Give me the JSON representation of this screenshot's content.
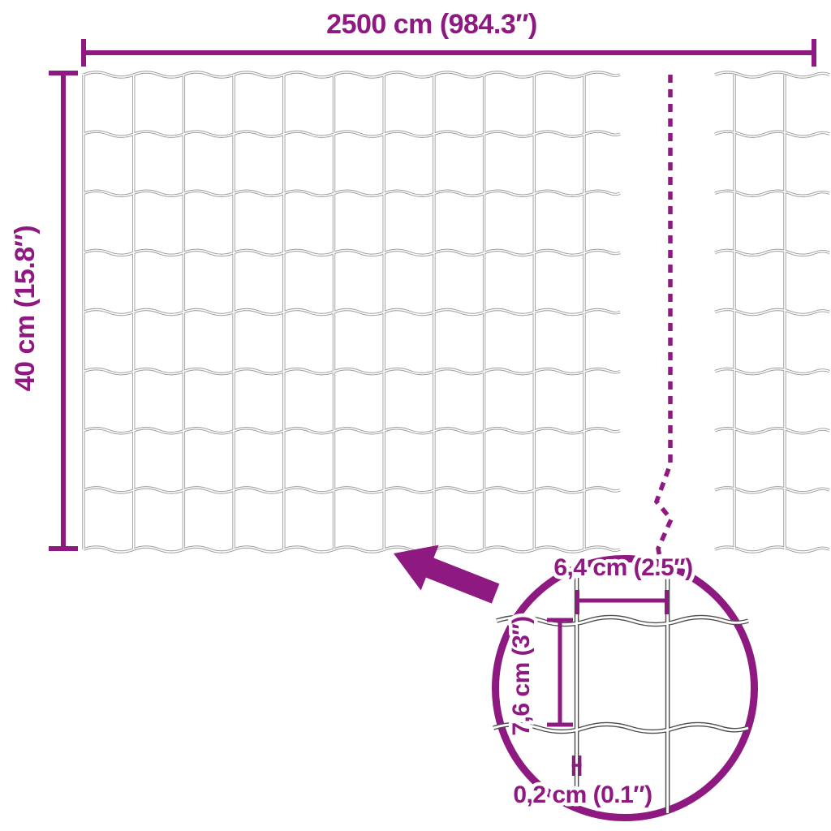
{
  "title": "Wire mesh fence dimension diagram",
  "colors": {
    "accent": "#8E1980",
    "wire": "#9C9C9C",
    "detail_wire": "#4D4D4D",
    "background": "#FFFFFF"
  },
  "dimensions": {
    "length": {
      "label": "2500 cm (984.3″)"
    },
    "height": {
      "label": "40 cm (15.8″)"
    },
    "mesh_width": {
      "label": "6,4 cm (2.5″)"
    },
    "mesh_height": {
      "label": "7,6 cm (3″)"
    },
    "wire_thickness": {
      "label": "0,2 cm (0.1″)"
    }
  }
}
